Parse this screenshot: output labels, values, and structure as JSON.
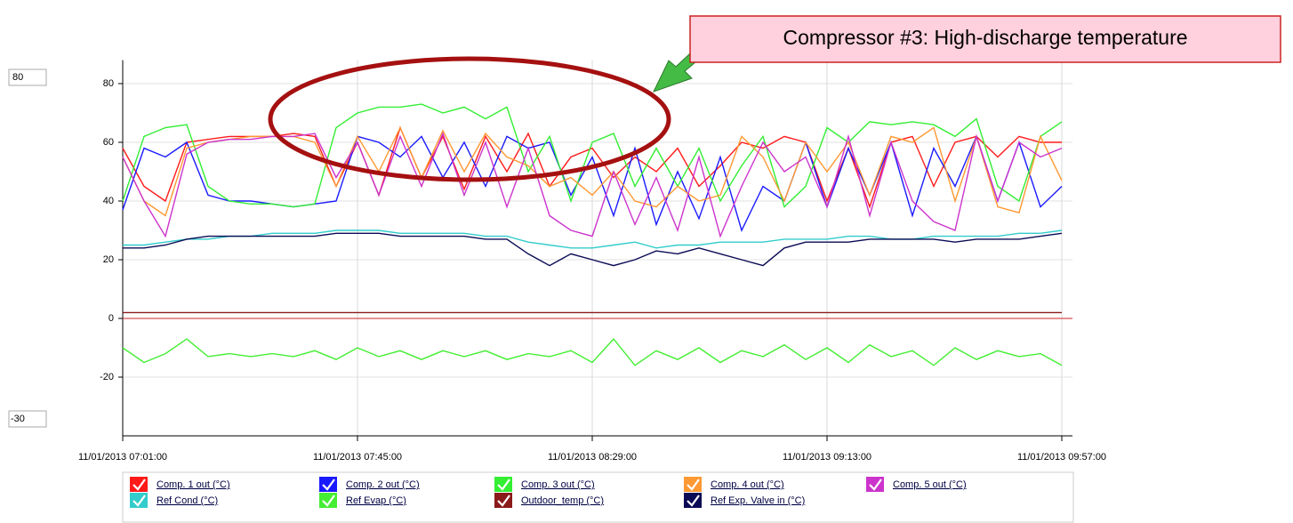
{
  "chart_data": {
    "type": "line",
    "annotation": "Compressor #3: High-discharge temperature",
    "y_range_inputs": [
      80,
      -30
    ],
    "x": [
      "11/01/2013 07:01:00",
      "11/01/2013 07:05:00",
      "11/01/2013 07:09:00",
      "11/01/2013 07:13:00",
      "11/01/2013 07:17:00",
      "11/01/2013 07:21:00",
      "11/01/2013 07:25:00",
      "11/01/2013 07:29:00",
      "11/01/2013 07:33:00",
      "11/01/2013 07:37:00",
      "11/01/2013 07:41:00",
      "11/01/2013 07:45:00",
      "11/01/2013 07:49:00",
      "11/01/2013 07:53:00",
      "11/01/2013 07:57:00",
      "11/01/2013 08:01:00",
      "11/01/2013 08:05:00",
      "11/01/2013 08:09:00",
      "11/01/2013 08:13:00",
      "11/01/2013 08:17:00",
      "11/01/2013 08:21:00",
      "11/01/2013 08:25:00",
      "11/01/2013 08:29:00",
      "11/01/2013 08:33:00",
      "11/01/2013 08:37:00",
      "11/01/2013 08:41:00",
      "11/01/2013 08:45:00",
      "11/01/2013 08:49:00",
      "11/01/2013 08:53:00",
      "11/01/2013 08:57:00",
      "11/01/2013 09:01:00",
      "11/01/2013 09:05:00",
      "11/01/2013 09:09:00",
      "11/01/2013 09:13:00",
      "11/01/2013 09:17:00",
      "11/01/2013 09:21:00",
      "11/01/2013 09:25:00",
      "11/01/2013 09:29:00",
      "11/01/2013 09:33:00",
      "11/01/2013 09:37:00",
      "11/01/2013 09:41:00",
      "11/01/2013 09:45:00",
      "11/01/2013 09:49:00",
      "11/01/2013 09:53:00",
      "11/01/2013 09:57:00"
    ],
    "xlim": [
      "11/01/2013 07:01:00",
      "11/01/2013 09:59:00"
    ],
    "xticks": [
      "11/01/2013 07:01:00",
      "11/01/2013 07:45:00",
      "11/01/2013 08:29:00",
      "11/01/2013 09:13:00",
      "11/01/2013 09:57:00"
    ],
    "ylim": [
      -40,
      88
    ],
    "yticks": [
      -20,
      0,
      20,
      40,
      60,
      80
    ],
    "grid": true,
    "series": [
      {
        "name": "Comp. 1 out (°C)",
        "color": "#ff1a1a",
        "values": [
          58,
          45,
          40,
          60,
          61,
          62,
          62,
          62,
          63,
          62,
          45,
          60,
          42,
          65,
          48,
          62,
          44,
          62,
          50,
          63,
          45,
          55,
          58,
          48,
          55,
          50,
          58,
          45,
          52,
          60,
          58,
          62,
          60,
          40,
          58,
          38,
          60,
          62,
          45,
          60,
          62,
          55,
          62,
          60,
          60
        ]
      },
      {
        "name": "Comp. 2 out (°C)",
        "color": "#1a1aff",
        "values": [
          37,
          58,
          55,
          60,
          42,
          40,
          40,
          39,
          38,
          39,
          40,
          62,
          60,
          55,
          62,
          48,
          60,
          45,
          62,
          58,
          60,
          42,
          55,
          35,
          58,
          32,
          50,
          34,
          55,
          30,
          45,
          40,
          60,
          38,
          58,
          42,
          60,
          35,
          58,
          45,
          62,
          40,
          60,
          38,
          45
        ]
      },
      {
        "name": "Comp. 3 out (°C)",
        "color": "#33ee33",
        "values": [
          40,
          62,
          65,
          66,
          45,
          40,
          39,
          39,
          38,
          39,
          65,
          70,
          72,
          72,
          73,
          70,
          72,
          68,
          72,
          50,
          62,
          40,
          60,
          63,
          45,
          58,
          45,
          58,
          40,
          52,
          62,
          38,
          45,
          65,
          60,
          67,
          66,
          67,
          66,
          62,
          68,
          45,
          40,
          62,
          67
        ]
      },
      {
        "name": "Comp. 4 out (°C)",
        "color": "#ff9933",
        "values": [
          55,
          40,
          35,
          58,
          60,
          61,
          62,
          62,
          62,
          60,
          45,
          62,
          50,
          65,
          48,
          64,
          50,
          63,
          55,
          52,
          45,
          48,
          42,
          50,
          40,
          38,
          45,
          40,
          42,
          62,
          55,
          40,
          60,
          50,
          60,
          42,
          62,
          60,
          65,
          40,
          62,
          38,
          36,
          62,
          47
        ]
      },
      {
        "name": "Comp. 5 out (°C)",
        "color": "#cc33cc",
        "values": [
          55,
          40,
          28,
          56,
          60,
          61,
          61,
          62,
          62,
          63,
          48,
          60,
          42,
          62,
          45,
          63,
          42,
          60,
          38,
          58,
          35,
          30,
          28,
          50,
          32,
          48,
          30,
          55,
          28,
          45,
          60,
          50,
          55,
          38,
          62,
          35,
          60,
          40,
          33,
          30,
          62,
          40,
          60,
          55,
          58
        ]
      },
      {
        "name": "Ref Cond (°C)",
        "color": "#33cccc",
        "values": [
          25,
          25,
          26,
          27,
          27,
          28,
          28,
          29,
          29,
          29,
          30,
          30,
          30,
          29,
          29,
          29,
          29,
          28,
          28,
          26,
          25,
          24,
          24,
          25,
          26,
          24,
          25,
          25,
          26,
          26,
          26,
          27,
          27,
          27,
          28,
          28,
          27,
          27,
          28,
          28,
          28,
          28,
          29,
          29,
          30
        ]
      },
      {
        "name": "Ref Evap (°C)",
        "color": "#44ee33",
        "values": [
          -10,
          -15,
          -12,
          -7,
          -13,
          -12,
          -13,
          -12,
          -13,
          -11,
          -14,
          -10,
          -13,
          -11,
          -14,
          -11,
          -13,
          -11,
          -14,
          -12,
          -13,
          -11,
          -15,
          -7,
          -16,
          -11,
          -14,
          -10,
          -15,
          -11,
          -13,
          -9,
          -14,
          -10,
          -15,
          -9,
          -13,
          -11,
          -16,
          -10,
          -14,
          -11,
          -13,
          -12,
          -16
        ]
      },
      {
        "name": "Outdoor_temp (°C)",
        "color": "#8b1a1a",
        "values": [
          2,
          2,
          2,
          2,
          2,
          2,
          2,
          2,
          2,
          2,
          2,
          2,
          2,
          2,
          2,
          2,
          2,
          2,
          2,
          2,
          2,
          2,
          2,
          2,
          2,
          2,
          2,
          2,
          2,
          2,
          2,
          2,
          2,
          2,
          2,
          2,
          2,
          2,
          2,
          2,
          2,
          2,
          2,
          2,
          2
        ]
      },
      {
        "name": "Ref Exp. Valve in (°C)",
        "color": "#0a0a55",
        "values": [
          24,
          24,
          25,
          27,
          28,
          28,
          28,
          28,
          28,
          28,
          29,
          29,
          29,
          28,
          28,
          28,
          28,
          27,
          27,
          22,
          18,
          22,
          20,
          18,
          20,
          23,
          22,
          24,
          22,
          20,
          18,
          24,
          26,
          26,
          26,
          27,
          27,
          27,
          27,
          26,
          27,
          27,
          27,
          28,
          29
        ]
      }
    ]
  }
}
